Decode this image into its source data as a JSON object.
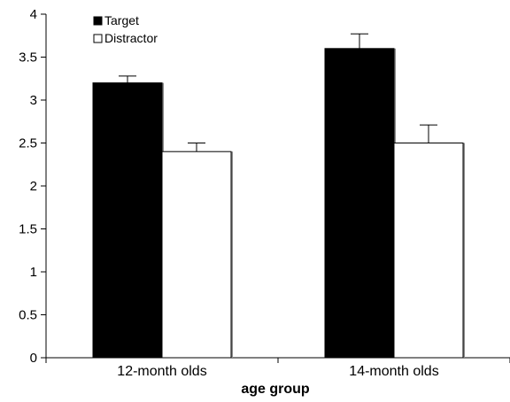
{
  "chart_data": {
    "type": "bar",
    "categories": [
      "12-month olds",
      "14-month olds"
    ],
    "series": [
      {
        "name": "Target",
        "values": [
          3.2,
          3.6
        ],
        "errors": [
          0.08,
          0.17
        ],
        "color": "#000000"
      },
      {
        "name": "Distractor",
        "values": [
          2.4,
          2.5
        ],
        "errors": [
          0.1,
          0.21
        ],
        "color": "#ffffff"
      }
    ],
    "xlabel": "age group",
    "ylabel": "",
    "ylim": [
      0,
      4
    ],
    "yticks": [
      0,
      0.5,
      1,
      1.5,
      2,
      2.5,
      3,
      3.5,
      4
    ],
    "ytick_labels": [
      "0",
      "0.5",
      "1",
      "1.5",
      "2",
      "2.5",
      "3",
      "3.5",
      "4"
    ],
    "grid": false,
    "legend_position": "top-left"
  }
}
